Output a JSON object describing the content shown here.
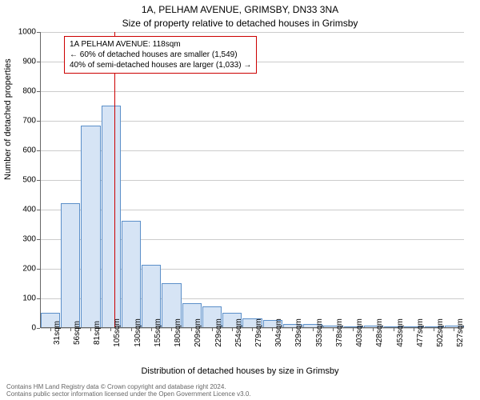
{
  "header": {
    "address": "1A, PELHAM AVENUE, GRIMSBY, DN33 3NA",
    "subtitle": "Size of property relative to detached houses in Grimsby"
  },
  "chart": {
    "type": "histogram",
    "ylabel": "Number of detached properties",
    "xlabel": "Distribution of detached houses by size in Grimsby",
    "ylim": [
      0,
      1000
    ],
    "ytick_step": 100,
    "yticks": [
      0,
      100,
      200,
      300,
      400,
      500,
      600,
      700,
      800,
      900,
      1000
    ],
    "xticks": [
      "31sqm",
      "56sqm",
      "81sqm",
      "105sqm",
      "130sqm",
      "155sqm",
      "180sqm",
      "209sqm",
      "229sqm",
      "254sqm",
      "279sqm",
      "304sqm",
      "329sqm",
      "353sqm",
      "378sqm",
      "403sqm",
      "428sqm",
      "453sqm",
      "477sqm",
      "502sqm",
      "527sqm"
    ],
    "bar_values": [
      50,
      420,
      680,
      750,
      360,
      210,
      150,
      80,
      70,
      50,
      30,
      25,
      10,
      10,
      5,
      0,
      5,
      0,
      0,
      0,
      5
    ],
    "bar_fill": "#d6e4f5",
    "bar_stroke": "#5b8fc9",
    "background_color": "#ffffff",
    "grid_color": "#cccccc",
    "axis_color": "#666666",
    "marker": {
      "x_position_pct": 0.173,
      "color": "#cc0000"
    },
    "infobox": {
      "border_color": "#cc0000",
      "lines": [
        "1A PELHAM AVENUE: 118sqm",
        "← 60% of detached houses are smaller (1,549)",
        "40% of semi-detached houses are larger (1,033) →"
      ]
    }
  },
  "footer": {
    "line1": "Contains HM Land Registry data © Crown copyright and database right 2024.",
    "line2": "Contains public sector information licensed under the Open Government Licence v3.0."
  }
}
